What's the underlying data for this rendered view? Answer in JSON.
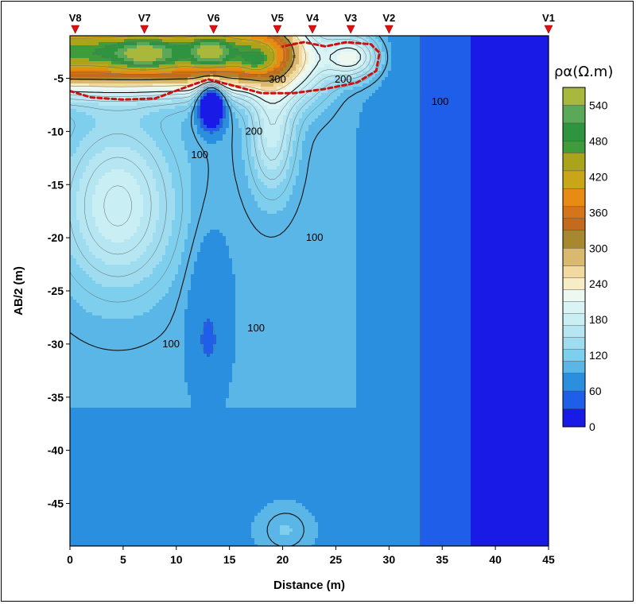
{
  "chart_data": {
    "type": "heatmap",
    "title": "",
    "xlabel": "Distance (m)",
    "ylabel": "AB/2 (m)",
    "xlim": [
      0,
      45
    ],
    "ylim": [
      -49,
      -1
    ],
    "xticks": [
      0,
      5,
      10,
      15,
      20,
      25,
      30,
      35,
      40,
      45
    ],
    "yticks": [
      -5,
      -10,
      -15,
      -20,
      -25,
      -30,
      -35,
      -40,
      -45
    ],
    "colorbar": {
      "title": "ρα(Ω.m)",
      "range": [
        0,
        570
      ],
      "tick_labels": [
        0,
        60,
        120,
        180,
        240,
        300,
        360,
        420,
        480,
        540
      ],
      "levels": [
        {
          "from": 0,
          "to": 30,
          "color": "#1a1ae6"
        },
        {
          "from": 30,
          "to": 60,
          "color": "#1f5ee8"
        },
        {
          "from": 60,
          "to": 90,
          "color": "#2b8fe0"
        },
        {
          "from": 90,
          "to": 110,
          "color": "#5ab6e6"
        },
        {
          "from": 110,
          "to": 130,
          "color": "#7ecfee"
        },
        {
          "from": 130,
          "to": 150,
          "color": "#9fdcf0"
        },
        {
          "from": 150,
          "to": 170,
          "color": "#b5e6f2"
        },
        {
          "from": 170,
          "to": 190,
          "color": "#c9eef4"
        },
        {
          "from": 190,
          "to": 210,
          "color": "#daf4f6"
        },
        {
          "from": 210,
          "to": 230,
          "color": "#ecf8f0"
        },
        {
          "from": 230,
          "to": 250,
          "color": "#f7ecc4"
        },
        {
          "from": 250,
          "to": 270,
          "color": "#f2d9a0"
        },
        {
          "from": 270,
          "to": 300,
          "color": "#d9b870"
        },
        {
          "from": 300,
          "to": 330,
          "color": "#a8882e"
        },
        {
          "from": 330,
          "to": 350,
          "color": "#c26a1e"
        },
        {
          "from": 350,
          "to": 370,
          "color": "#d4751a"
        },
        {
          "from": 370,
          "to": 400,
          "color": "#e88a14"
        },
        {
          "from": 400,
          "to": 430,
          "color": "#c8a618"
        },
        {
          "from": 430,
          "to": 460,
          "color": "#a9a41c"
        },
        {
          "from": 460,
          "to": 480,
          "color": "#3e9c3a"
        },
        {
          "from": 480,
          "to": 510,
          "color": "#2f9440"
        },
        {
          "from": 510,
          "to": 540,
          "color": "#5aa858"
        },
        {
          "from": 540,
          "to": 570,
          "color": "#a8b83c"
        }
      ]
    },
    "sounding_points": [
      {
        "label": "V8",
        "x": 0.5
      },
      {
        "label": "V7",
        "x": 7.0
      },
      {
        "label": "V6",
        "x": 13.5
      },
      {
        "label": "V5",
        "x": 19.5
      },
      {
        "label": "V4",
        "x": 22.8
      },
      {
        "label": "V3",
        "x": 26.4
      },
      {
        "label": "V2",
        "x": 30.0
      },
      {
        "label": "V1",
        "x": 45.0
      }
    ],
    "contour_labels": [
      {
        "text": "300",
        "x": 19.5,
        "y": -5.1
      },
      {
        "text": "200",
        "x": 25.7,
        "y": -5.1
      },
      {
        "text": "100",
        "x": 34.8,
        "y": -7.2
      },
      {
        "text": "200",
        "x": 17.3,
        "y": -10.0
      },
      {
        "text": "100",
        "x": 12.2,
        "y": -12.2
      },
      {
        "text": "100",
        "x": 23.0,
        "y": -20.0
      },
      {
        "text": "100",
        "x": 17.5,
        "y": -28.5
      },
      {
        "text": "100",
        "x": 9.5,
        "y": -30.0
      }
    ],
    "annotation": {
      "type": "dashed-outline",
      "color": "#cc1111",
      "path_data_units": [
        [
          0,
          -6.2
        ],
        [
          2,
          -6.8
        ],
        [
          5,
          -7.0
        ],
        [
          8,
          -6.9
        ],
        [
          11,
          -5.8
        ],
        [
          13,
          -5.1
        ],
        [
          15,
          -5.6
        ],
        [
          18,
          -6.4
        ],
        [
          21,
          -6.4
        ],
        [
          24,
          -6.0
        ],
        [
          27,
          -5.4
        ],
        [
          28.8,
          -4.3
        ],
        [
          29.1,
          -2.6
        ],
        [
          28.3,
          -1.8
        ],
        [
          26,
          -1.6
        ],
        [
          24,
          -2.0
        ],
        [
          22,
          -1.6
        ],
        [
          20,
          -2.0
        ]
      ]
    }
  }
}
